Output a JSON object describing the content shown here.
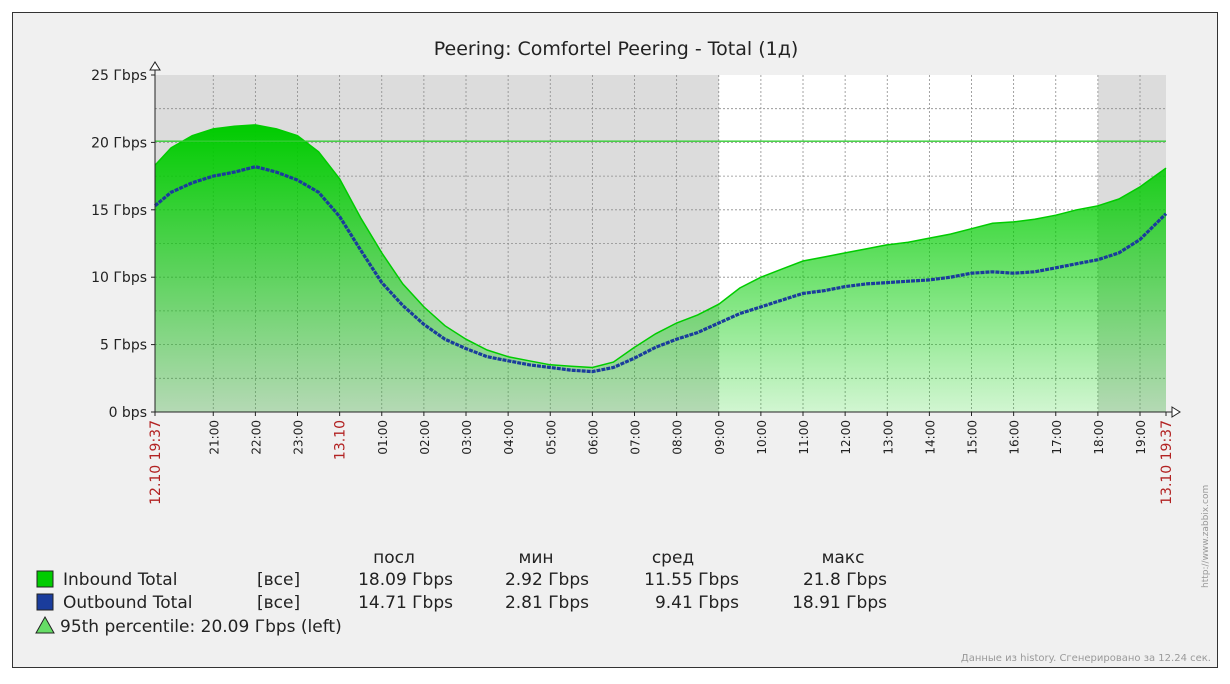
{
  "chart_data": {
    "type": "area",
    "title": "Peering: Comfortel Peering - Total (1д)",
    "y_ticks": [
      "0 bps",
      "5 Гbps",
      "10 Гbps",
      "15 Гbps",
      "20 Гbps",
      "25 Гbps"
    ],
    "y_tick_values": [
      0,
      5,
      10,
      15,
      20,
      25
    ],
    "ylim": [
      0,
      25
    ],
    "unit": "Gbps",
    "x_range_hours": [
      19.617,
      43.617
    ],
    "x_ticks": [
      {
        "label": "12.10 19:37",
        "hour": 19.617,
        "highlight": true
      },
      {
        "label": "21:00",
        "hour": 21
      },
      {
        "label": "22:00",
        "hour": 22
      },
      {
        "label": "23:00",
        "hour": 23
      },
      {
        "label": "13.10",
        "hour": 24,
        "highlight": true
      },
      {
        "label": "01:00",
        "hour": 25
      },
      {
        "label": "02:00",
        "hour": 26
      },
      {
        "label": "03:00",
        "hour": 27
      },
      {
        "label": "04:00",
        "hour": 28
      },
      {
        "label": "05:00",
        "hour": 29
      },
      {
        "label": "06:00",
        "hour": 30
      },
      {
        "label": "07:00",
        "hour": 31
      },
      {
        "label": "08:00",
        "hour": 32
      },
      {
        "label": "09:00",
        "hour": 33
      },
      {
        "label": "10:00",
        "hour": 34
      },
      {
        "label": "11:00",
        "hour": 35
      },
      {
        "label": "12:00",
        "hour": 36
      },
      {
        "label": "13:00",
        "hour": 37
      },
      {
        "label": "14:00",
        "hour": 38
      },
      {
        "label": "15:00",
        "hour": 39
      },
      {
        "label": "16:00",
        "hour": 40
      },
      {
        "label": "17:00",
        "hour": 41
      },
      {
        "label": "18:00",
        "hour": 42
      },
      {
        "label": "19:00",
        "hour": 43
      },
      {
        "label": "13.10 19:37",
        "hour": 43.617,
        "highlight": true
      }
    ],
    "work_period_hours": [
      33,
      42
    ],
    "percentile_line": {
      "label": "95th percentile: 20.09 Гbps (left)",
      "value": 20.09
    },
    "series": [
      {
        "name": "Inbound Total",
        "color": "#00cc00",
        "hours": [
          19.617,
          20,
          20.5,
          21,
          21.5,
          22,
          22.5,
          23,
          23.5,
          24,
          24.5,
          25,
          25.5,
          26,
          26.5,
          27,
          27.5,
          28,
          28.5,
          29,
          29.5,
          30,
          30.5,
          31,
          31.5,
          32,
          32.5,
          33,
          33.5,
          34,
          34.5,
          35,
          35.5,
          36,
          36.5,
          37,
          37.5,
          38,
          38.5,
          39,
          39.5,
          40,
          40.5,
          41,
          41.5,
          42,
          42.5,
          43,
          43.617
        ],
        "values": [
          18.3,
          19.6,
          20.5,
          21.0,
          21.2,
          21.3,
          21.0,
          20.5,
          19.3,
          17.3,
          14.4,
          11.8,
          9.5,
          7.8,
          6.4,
          5.4,
          4.6,
          4.1,
          3.8,
          3.5,
          3.4,
          3.3,
          3.7,
          4.8,
          5.8,
          6.6,
          7.2,
          8.0,
          9.2,
          10.0,
          10.6,
          11.2,
          11.5,
          11.8,
          12.1,
          12.4,
          12.6,
          12.9,
          13.2,
          13.6,
          14.0,
          14.1,
          14.3,
          14.6,
          15.0,
          15.3,
          15.8,
          16.7,
          18.09
        ]
      },
      {
        "name": "Outbound Total",
        "color": "#1a3c9c",
        "hours": [
          19.617,
          20,
          20.5,
          21,
          21.5,
          22,
          22.5,
          23,
          23.5,
          24,
          24.5,
          25,
          25.5,
          26,
          26.5,
          27,
          27.5,
          28,
          28.5,
          29,
          29.5,
          30,
          30.5,
          31,
          31.5,
          32,
          32.5,
          33,
          33.5,
          34,
          34.5,
          35,
          35.5,
          36,
          36.5,
          37,
          37.5,
          38,
          38.5,
          39,
          39.5,
          40,
          40.5,
          41,
          41.5,
          42,
          42.5,
          43,
          43.617
        ],
        "values": [
          15.3,
          16.3,
          17.0,
          17.5,
          17.8,
          18.2,
          17.8,
          17.2,
          16.3,
          14.5,
          12.0,
          9.6,
          7.9,
          6.5,
          5.4,
          4.7,
          4.1,
          3.8,
          3.5,
          3.3,
          3.1,
          3.0,
          3.3,
          4.0,
          4.8,
          5.4,
          5.9,
          6.6,
          7.3,
          7.8,
          8.3,
          8.8,
          9.0,
          9.3,
          9.5,
          9.6,
          9.7,
          9.8,
          10.0,
          10.3,
          10.4,
          10.3,
          10.4,
          10.7,
          11.0,
          11.3,
          11.8,
          12.8,
          14.71
        ]
      }
    ],
    "legend": {
      "headers": [
        "посл",
        "мин",
        "сред",
        "макс"
      ],
      "rows": [
        {
          "name": "Inbound Total",
          "scope": "[все]",
          "last": "18.09 Гbps",
          "min": "2.92 Гbps",
          "avg": "11.55 Гbps",
          "max": "21.8 Гbps",
          "color": "#00cc00"
        },
        {
          "name": "Outbound Total",
          "scope": "[все]",
          "last": "14.71 Гbps",
          "min": "2.81 Гbps",
          "avg": "9.41 Гbps",
          "max": "18.91 Гbps",
          "color": "#1a3c9c"
        }
      ]
    },
    "footer": "Данные из history. Сгенерировано за 12.24 сек.",
    "watermark": "http://www.zabbix.com"
  }
}
